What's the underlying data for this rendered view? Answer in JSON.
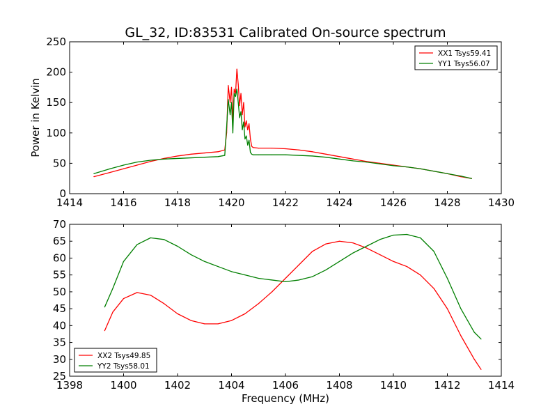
{
  "figure": {
    "title": "GL_32, ID:83531 Calibrated On-source spectrum",
    "xlabel": "Frequency (MHz)"
  },
  "colors": {
    "red": "#ff0000",
    "green": "#007f00",
    "axis": "#000000"
  },
  "chart_data": [
    {
      "type": "line",
      "ylabel": "Power in Kelvin",
      "xlim": [
        1414,
        1430
      ],
      "ylim": [
        0,
        250
      ],
      "xticks": [
        1414,
        1416,
        1418,
        1420,
        1422,
        1424,
        1426,
        1428,
        1430
      ],
      "yticks": [
        0,
        50,
        100,
        150,
        200,
        250
      ],
      "legend_loc": "top-right",
      "series": [
        {
          "name": "XX1 Tsys59.41",
          "color": "#ff0000",
          "x": [
            1414.9,
            1415.5,
            1416.0,
            1416.5,
            1417.0,
            1417.5,
            1418.0,
            1418.5,
            1419.0,
            1419.5,
            1419.75,
            1419.82,
            1419.88,
            1419.95,
            1420.0,
            1420.05,
            1420.1,
            1420.15,
            1420.2,
            1420.25,
            1420.3,
            1420.35,
            1420.4,
            1420.45,
            1420.5,
            1420.55,
            1420.6,
            1420.65,
            1420.7,
            1420.75,
            1420.8,
            1421.0,
            1421.5,
            1422.0,
            1422.5,
            1423.0,
            1423.5,
            1424.0,
            1424.5,
            1425.0,
            1425.5,
            1426.0,
            1426.5,
            1427.0,
            1427.5,
            1428.0,
            1428.5,
            1428.9
          ],
          "y": [
            28,
            35,
            41,
            47,
            53,
            58,
            62,
            65,
            67,
            69,
            72,
            100,
            178,
            150,
            175,
            120,
            172,
            165,
            205,
            180,
            145,
            165,
            130,
            150,
            110,
            120,
            105,
            115,
            90,
            78,
            76,
            75,
            75,
            74,
            72,
            69,
            65,
            61,
            57,
            53,
            50,
            47,
            44,
            41,
            37,
            33,
            28,
            25
          ]
        },
        {
          "name": "YY1 Tsys56.07",
          "color": "#007f00",
          "x": [
            1414.9,
            1415.5,
            1416.0,
            1416.5,
            1417.0,
            1417.5,
            1418.0,
            1418.5,
            1419.0,
            1419.5,
            1419.75,
            1419.82,
            1419.88,
            1419.95,
            1420.0,
            1420.05,
            1420.1,
            1420.15,
            1420.2,
            1420.25,
            1420.3,
            1420.35,
            1420.4,
            1420.45,
            1420.5,
            1420.55,
            1420.6,
            1420.65,
            1420.7,
            1420.75,
            1420.8,
            1421.0,
            1421.5,
            1422.0,
            1422.5,
            1423.0,
            1423.5,
            1424.0,
            1424.5,
            1425.0,
            1425.5,
            1426.0,
            1426.5,
            1427.0,
            1427.5,
            1428.0,
            1428.5,
            1428.9
          ],
          "y": [
            33,
            41,
            47,
            52,
            55,
            57,
            58,
            59,
            60,
            61,
            63,
            110,
            155,
            130,
            150,
            100,
            165,
            160,
            172,
            150,
            125,
            135,
            105,
            118,
            90,
            95,
            80,
            88,
            68,
            65,
            64,
            64,
            64,
            64,
            63,
            62,
            60,
            57,
            54,
            52,
            49,
            46,
            44,
            41,
            37,
            33,
            29,
            25
          ]
        }
      ]
    },
    {
      "type": "line",
      "xlabel": "Frequency (MHz)",
      "xlim": [
        1398,
        1414
      ],
      "ylim": [
        25,
        70
      ],
      "xticks": [
        1398,
        1400,
        1402,
        1404,
        1406,
        1408,
        1410,
        1412,
        1414
      ],
      "yticks": [
        25,
        30,
        35,
        40,
        45,
        50,
        55,
        60,
        65,
        70
      ],
      "legend_loc": "bottom-left",
      "series": [
        {
          "name": "XX2 Tsys49.85",
          "color": "#ff0000",
          "x": [
            1399.3,
            1399.6,
            1400.0,
            1400.5,
            1401.0,
            1401.5,
            1402.0,
            1402.5,
            1403.0,
            1403.5,
            1404.0,
            1404.5,
            1405.0,
            1405.5,
            1406.0,
            1406.5,
            1407.0,
            1407.5,
            1408.0,
            1408.5,
            1409.0,
            1409.5,
            1410.0,
            1410.5,
            1411.0,
            1411.5,
            1412.0,
            1412.5,
            1413.0,
            1413.25
          ],
          "y": [
            38.5,
            44,
            48,
            49.8,
            49,
            46.5,
            43.5,
            41.5,
            40.5,
            40.5,
            41.5,
            43.5,
            46.5,
            50,
            54,
            58,
            62,
            64.2,
            65,
            64.5,
            63,
            61,
            59,
            57.5,
            55,
            51,
            45,
            37,
            30,
            27
          ]
        },
        {
          "name": "YY2 Tsys58.01",
          "color": "#007f00",
          "x": [
            1399.3,
            1399.6,
            1400.0,
            1400.5,
            1401.0,
            1401.5,
            1402.0,
            1402.5,
            1403.0,
            1403.5,
            1404.0,
            1404.5,
            1405.0,
            1405.5,
            1406.0,
            1406.5,
            1407.0,
            1407.5,
            1408.0,
            1408.5,
            1409.0,
            1409.5,
            1410.0,
            1410.5,
            1411.0,
            1411.5,
            1412.0,
            1412.5,
            1413.0,
            1413.25
          ],
          "y": [
            45.5,
            51,
            59,
            64,
            66,
            65.5,
            63.5,
            61,
            59,
            57.5,
            56,
            55,
            54,
            53.5,
            53,
            53.5,
            54.5,
            56.5,
            59,
            61.5,
            63.5,
            65.5,
            66.8,
            67,
            66,
            62,
            54,
            45,
            38,
            36
          ]
        }
      ]
    }
  ]
}
